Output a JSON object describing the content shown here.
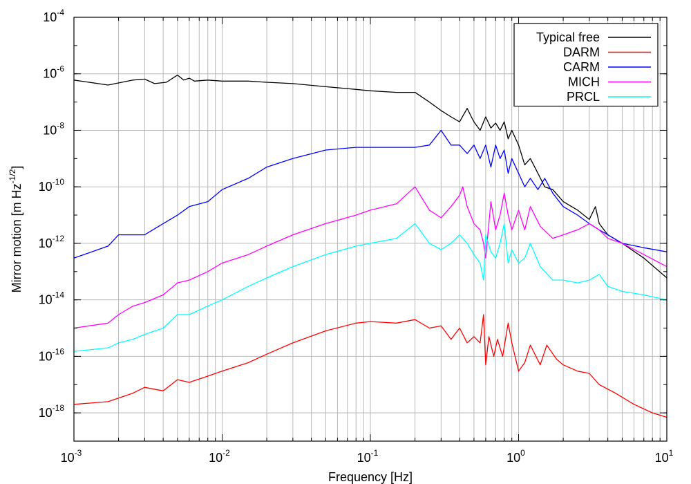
{
  "chart_data": {
    "type": "line",
    "xlabel": "Frequency [Hz]",
    "ylabel": "Mirror motion [m Hz-1/2]",
    "ylabel_parts": {
      "main": "Mirror motion [m Hz",
      "exponent": "-1/2",
      "close": "]"
    },
    "xscale": "log",
    "yscale": "log",
    "xlim": [
      0.001,
      10
    ],
    "ylim": [
      1e-19,
      0.0001
    ],
    "grid": true,
    "legend_position": "top-right",
    "x_ticks": [
      {
        "base": "10",
        "exp": "-3",
        "value": 0.001
      },
      {
        "base": "10",
        "exp": "-2",
        "value": 0.01
      },
      {
        "base": "10",
        "exp": "-1",
        "value": 0.1
      },
      {
        "base": "10",
        "exp": "0",
        "value": 1
      },
      {
        "base": "10",
        "exp": "1",
        "value": 10
      }
    ],
    "y_ticks": [
      {
        "base": "10",
        "exp": "-4",
        "value": 0.0001
      },
      {
        "base": "10",
        "exp": "-6",
        "value": 1e-06
      },
      {
        "base": "10",
        "exp": "-8",
        "value": 1e-08
      },
      {
        "base": "10",
        "exp": "-10",
        "value": 1e-10
      },
      {
        "base": "10",
        "exp": "-12",
        "value": 1e-12
      },
      {
        "base": "10",
        "exp": "-14",
        "value": 1e-14
      },
      {
        "base": "10",
        "exp": "-16",
        "value": 1e-16
      },
      {
        "base": "10",
        "exp": "-18",
        "value": 1e-18
      }
    ],
    "series": [
      {
        "name": "Typical free",
        "color": "#000000",
        "x": [
          0.001,
          0.0017,
          0.0025,
          0.003,
          0.0035,
          0.0042,
          0.005,
          0.0055,
          0.006,
          0.0065,
          0.008,
          0.01,
          0.015,
          0.02,
          0.03,
          0.05,
          0.08,
          0.1,
          0.15,
          0.2,
          0.25,
          0.3,
          0.35,
          0.4,
          0.45,
          0.48,
          0.5,
          0.55,
          0.6,
          0.65,
          0.7,
          0.75,
          0.8,
          0.85,
          0.9,
          1.0,
          1.1,
          1.2,
          1.35,
          1.5,
          1.7,
          2.0,
          2.5,
          3.0,
          3.3,
          3.5,
          4.0,
          5.0,
          7.0,
          10.0
        ],
        "y": [
          6e-07,
          4e-07,
          6e-07,
          6.5e-07,
          4.5e-07,
          5e-07,
          9e-07,
          6e-07,
          7e-07,
          5.5e-07,
          6e-07,
          5.5e-07,
          5.5e-07,
          5e-07,
          4.5e-07,
          3.5e-07,
          2.8e-07,
          2.5e-07,
          2.2e-07,
          2.2e-07,
          1e-07,
          5e-08,
          3e-08,
          2e-08,
          6e-08,
          3e-08,
          2e-08,
          1e-08,
          3e-08,
          1.2e-08,
          1.8e-08,
          1e-08,
          2e-08,
          5e-09,
          1e-08,
          3e-09,
          6e-10,
          1e-09,
          3e-10,
          1e-10,
          8e-11,
          3e-11,
          1.5e-11,
          7e-12,
          2e-11,
          5e-12,
          2e-12,
          1e-12,
          3e-13,
          6e-14
        ]
      },
      {
        "name": "DARM",
        "color": "#ff0000",
        "x": [
          0.001,
          0.0017,
          0.0025,
          0.003,
          0.004,
          0.005,
          0.006,
          0.008,
          0.01,
          0.015,
          0.02,
          0.03,
          0.05,
          0.08,
          0.1,
          0.15,
          0.2,
          0.25,
          0.3,
          0.35,
          0.4,
          0.45,
          0.5,
          0.55,
          0.58,
          0.6,
          0.63,
          0.68,
          0.72,
          0.78,
          0.85,
          0.9,
          1.0,
          1.1,
          1.2,
          1.4,
          1.55,
          1.8,
          2.0,
          2.5,
          3.0,
          3.5,
          4.5,
          6.0,
          8.0,
          10.0
        ],
        "y": [
          2e-18,
          2.5e-18,
          5e-18,
          8e-18,
          6e-18,
          1.5e-17,
          1.2e-17,
          2e-17,
          3e-17,
          6e-17,
          1.2e-16,
          3e-16,
          8e-16,
          1.5e-15,
          1.7e-15,
          1.5e-15,
          2e-15,
          1e-15,
          1.2e-15,
          4e-16,
          1e-15,
          3e-16,
          5e-16,
          3e-16,
          3e-15,
          5e-17,
          5e-16,
          1e-16,
          4e-16,
          1e-16,
          1.5e-15,
          3e-16,
          3e-17,
          6e-17,
          2.5e-16,
          5e-17,
          2.5e-16,
          8e-17,
          5e-17,
          3e-17,
          2.5e-17,
          1e-17,
          5e-18,
          2e-18,
          1e-18,
          7e-19
        ]
      },
      {
        "name": "CARM",
        "color": "#0000ff",
        "x": [
          0.001,
          0.0017,
          0.002,
          0.0025,
          0.003,
          0.004,
          0.005,
          0.006,
          0.008,
          0.01,
          0.015,
          0.02,
          0.03,
          0.05,
          0.08,
          0.1,
          0.15,
          0.2,
          0.25,
          0.3,
          0.35,
          0.4,
          0.45,
          0.5,
          0.55,
          0.6,
          0.65,
          0.7,
          0.75,
          0.8,
          0.85,
          0.9,
          1.0,
          1.1,
          1.2,
          1.35,
          1.5,
          1.7,
          2.0,
          2.5,
          3.0,
          3.5,
          4.0,
          5.0,
          7.0,
          10.0
        ],
        "y": [
          3e-13,
          8e-13,
          2e-12,
          2e-12,
          2e-12,
          5e-12,
          1e-11,
          2e-11,
          3e-11,
          8e-11,
          2e-10,
          5e-10,
          1e-09,
          2e-09,
          2.5e-09,
          2.5e-09,
          2.5e-09,
          2.5e-09,
          3e-09,
          1e-08,
          3e-09,
          3e-09,
          1.5e-09,
          3e-09,
          1e-09,
          3e-09,
          5e-10,
          3e-09,
          1e-09,
          2e-09,
          3e-10,
          1e-09,
          3e-10,
          1e-10,
          2e-10,
          8e-11,
          2e-10,
          6e-11,
          2e-11,
          1e-11,
          5e-12,
          3e-12,
          2e-12,
          1e-12,
          7e-13,
          5e-13
        ]
      },
      {
        "name": "MICH",
        "color": "#ff00ff",
        "x": [
          0.001,
          0.0017,
          0.002,
          0.0025,
          0.003,
          0.004,
          0.005,
          0.006,
          0.008,
          0.01,
          0.015,
          0.02,
          0.03,
          0.05,
          0.08,
          0.1,
          0.15,
          0.2,
          0.25,
          0.3,
          0.35,
          0.4,
          0.42,
          0.45,
          0.5,
          0.55,
          0.58,
          0.6,
          0.65,
          0.7,
          0.75,
          0.8,
          0.85,
          0.9,
          1.0,
          1.1,
          1.2,
          1.4,
          1.7,
          2.0,
          2.5,
          3.0,
          3.5,
          4.0,
          5.0,
          7.0,
          10.0
        ],
        "y": [
          1e-15,
          1.5e-15,
          3e-15,
          6e-15,
          8e-15,
          1.5e-14,
          4e-14,
          5e-14,
          1e-13,
          2e-13,
          4e-13,
          8e-13,
          2e-12,
          5e-12,
          1e-11,
          1.5e-11,
          2.5e-11,
          1e-10,
          1.5e-11,
          8e-12,
          2e-11,
          5e-11,
          1e-10,
          2e-11,
          5e-12,
          3e-12,
          1e-12,
          3e-13,
          3e-11,
          3e-12,
          1e-11,
          6e-11,
          1e-11,
          3e-12,
          1.5e-11,
          3e-12,
          2e-11,
          4e-12,
          1.5e-12,
          2e-12,
          3e-12,
          5e-12,
          3e-12,
          1.5e-12,
          1e-12,
          4e-13,
          1.5e-13
        ]
      },
      {
        "name": "PRCL",
        "color": "#00ffff",
        "x": [
          0.001,
          0.0017,
          0.002,
          0.0025,
          0.003,
          0.004,
          0.005,
          0.006,
          0.008,
          0.01,
          0.015,
          0.02,
          0.03,
          0.05,
          0.08,
          0.1,
          0.15,
          0.2,
          0.25,
          0.3,
          0.35,
          0.4,
          0.45,
          0.5,
          0.55,
          0.58,
          0.6,
          0.65,
          0.7,
          0.75,
          0.8,
          0.85,
          0.9,
          1.0,
          1.1,
          1.2,
          1.4,
          1.7,
          2.0,
          2.5,
          3.0,
          3.5,
          4.0,
          5.0,
          7.0,
          10.0
        ],
        "y": [
          1.5e-16,
          2e-16,
          3e-16,
          4e-16,
          6e-16,
          1e-15,
          3e-15,
          3e-15,
          6e-15,
          1e-14,
          3e-14,
          6e-14,
          1.5e-13,
          4e-13,
          8e-13,
          1e-12,
          1.5e-12,
          5e-12,
          1e-12,
          6e-13,
          1e-12,
          2e-12,
          1e-12,
          4e-13,
          2e-13,
          5e-14,
          2e-12,
          5e-13,
          3e-13,
          1e-12,
          5e-12,
          2e-13,
          6e-13,
          2e-13,
          3e-13,
          1e-12,
          1.5e-13,
          5e-14,
          5e-14,
          4e-14,
          5e-14,
          8e-14,
          3e-14,
          2e-14,
          1.5e-14,
          1e-14
        ]
      }
    ]
  }
}
